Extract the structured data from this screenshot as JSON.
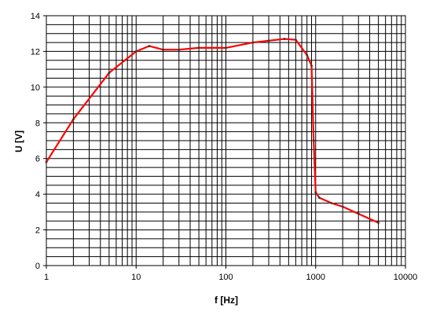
{
  "chart_data": {
    "type": "line",
    "xlabel": "f [Hz]",
    "ylabel": "U [V]",
    "x_scale": "log",
    "xlim": [
      1,
      10000
    ],
    "ylim": [
      0,
      14
    ],
    "grid": true,
    "x_tick_labels": [
      "1",
      "10",
      "100",
      "1000",
      "10000"
    ],
    "x_tick_values": [
      1,
      10,
      100,
      1000,
      10000
    ],
    "y_tick_labels": [
      "0",
      "2",
      "4",
      "6",
      "8",
      "10",
      "12",
      "14"
    ],
    "y_tick_values": [
      0,
      2,
      4,
      6,
      8,
      10,
      12,
      14
    ],
    "series": [
      {
        "color": "#ff0000",
        "x": [
          1,
          2,
          5,
          10,
          14,
          20,
          30,
          50,
          100,
          200,
          300,
          450,
          600,
          800,
          900,
          950,
          1000,
          1100,
          1500,
          2000,
          3000,
          5000
        ],
        "values": [
          5.8,
          8.2,
          10.8,
          12.0,
          12.3,
          12.1,
          12.1,
          12.2,
          12.2,
          12.5,
          12.6,
          12.7,
          12.65,
          11.8,
          11.2,
          7.0,
          4.1,
          3.8,
          3.5,
          3.3,
          2.9,
          2.4
        ]
      }
    ]
  }
}
